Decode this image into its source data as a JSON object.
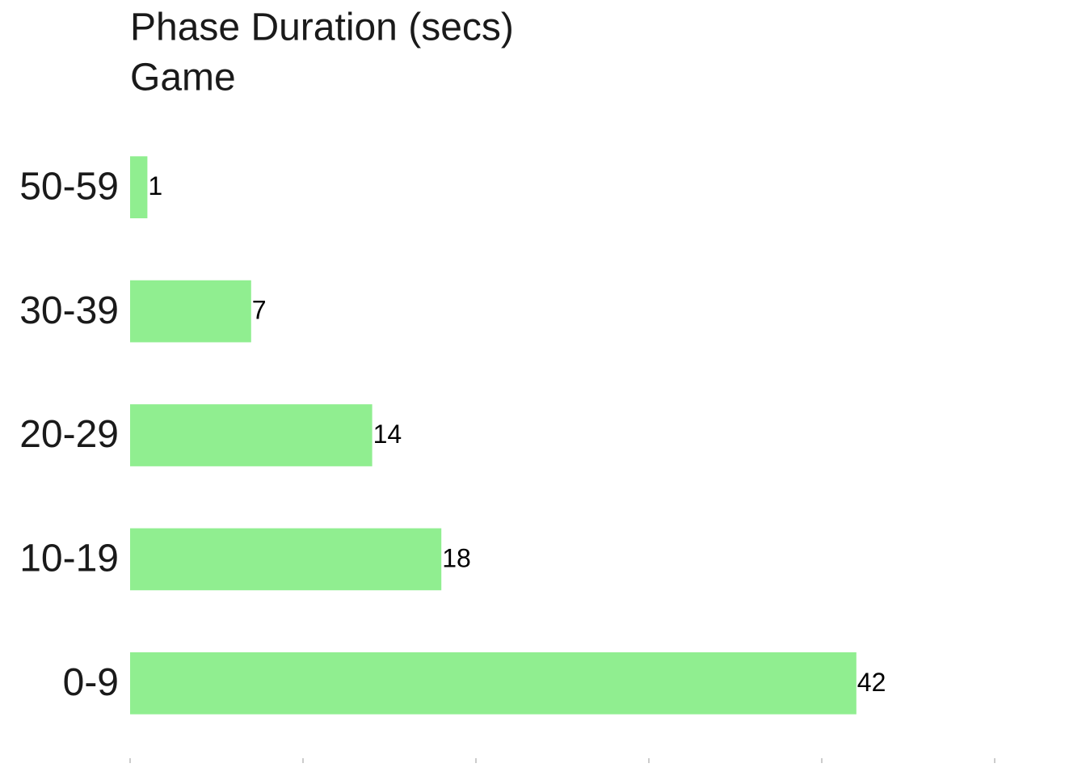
{
  "chart_data": {
    "type": "bar",
    "orientation": "horizontal",
    "title": "Phase Duration (secs)",
    "subtitle": "Game",
    "categories": [
      "0-9",
      "10-19",
      "20-29",
      "30-39",
      "50-59"
    ],
    "values": [
      42,
      18,
      14,
      7,
      1
    ],
    "color": "#90ee90",
    "xlim": [
      0,
      55
    ],
    "xticks": [
      0,
      10,
      20,
      30,
      40,
      50
    ],
    "grid": false
  }
}
